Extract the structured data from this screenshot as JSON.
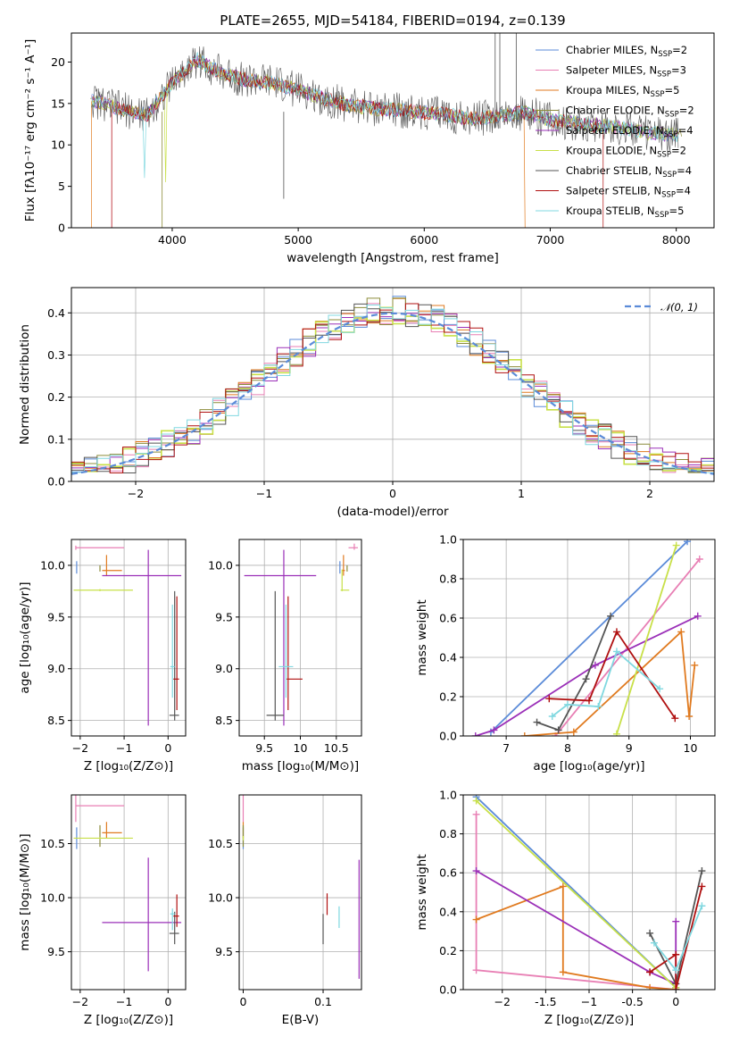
{
  "figure": {
    "title": "PLATE=2655, MJD=54184, FIBERID=0194, z=0.139"
  },
  "series": [
    {
      "name": "Chabrier MILES, N_SSP=2",
      "base": "Chabrier MILES, N",
      "sub": "SSP",
      "suffix": "=2",
      "color": "#5b8bd8"
    },
    {
      "name": "Salpeter MILES, N_SSP=3",
      "base": "Salpeter MILES, N",
      "sub": "SSP",
      "suffix": "=3",
      "color": "#e87fb4"
    },
    {
      "name": "Kroupa MILES, N_SSP=5",
      "base": "Kroupa MILES, N",
      "sub": "SSP",
      "suffix": "=5",
      "color": "#e07a1f"
    },
    {
      "name": "Chabrier ELODIE, N_SSP=2",
      "base": "Chabrier ELODIE, N",
      "sub": "SSP",
      "suffix": "=2",
      "color": "#8c8c3a"
    },
    {
      "name": "Salpeter ELODIE, N_SSP=4",
      "base": "Salpeter ELODIE, N",
      "sub": "SSP",
      "suffix": "=4",
      "color": "#9b30b8"
    },
    {
      "name": "Kroupa ELODIE, N_SSP=2",
      "base": "Kroupa ELODIE, N",
      "sub": "SSP",
      "suffix": "=2",
      "color": "#c8e048"
    },
    {
      "name": "Chabrier STELIB, N_SSP=4",
      "base": "Chabrier STELIB, N",
      "sub": "SSP",
      "suffix": "=4",
      "color": "#555555"
    },
    {
      "name": "Salpeter STELIB, N_SSP=4",
      "base": "Salpeter STELIB, N",
      "sub": "SSP",
      "suffix": "=4",
      "color": "#b01010"
    },
    {
      "name": "Kroupa STELIB, N_SSP=5",
      "base": "Kroupa STELIB, N",
      "sub": "SSP",
      "suffix": "=5",
      "color": "#80d8e0"
    }
  ],
  "chart_data": [
    {
      "id": "spectrum",
      "type": "line",
      "ylabel_text": "Flux [fλ10⁻¹⁷ erg cm⁻² s⁻¹ A⁻¹]",
      "xlabel": "wavelength [Angstrom, rest frame]",
      "xlim": [
        3200,
        8300
      ],
      "ylim": [
        0,
        23.5
      ],
      "xticks": [
        4000,
        5000,
        6000,
        7000,
        8000
      ],
      "yticks": [
        0,
        5,
        10,
        15,
        20
      ],
      "grid": false,
      "legend": "top-right",
      "continuum": {
        "x": [
          3400,
          3600,
          3800,
          4000,
          4200,
          4400,
          4600,
          4800,
          5000,
          5200,
          5400,
          5600,
          5800,
          6000,
          6200,
          6400,
          6600,
          6800,
          7000,
          7200,
          7400,
          7600,
          7800,
          8000,
          8050
        ],
        "y": [
          15.2,
          14.3,
          13.6,
          17.5,
          20.3,
          18.6,
          17.8,
          17.5,
          16.6,
          15.6,
          14.8,
          14.4,
          14.2,
          13.9,
          13.6,
          13.1,
          13.5,
          13.9,
          13.0,
          12.6,
          12.3,
          12.0,
          11.4,
          11.2,
          11.0
        ]
      }
    },
    {
      "id": "residuals",
      "type": "histogram",
      "xlabel": "(data-model)/error",
      "ylabel": "Normed distribution",
      "xlim": [
        -2.5,
        2.5
      ],
      "ylim": [
        0,
        0.46
      ],
      "xticks": [
        -2,
        -1,
        0,
        1,
        2
      ],
      "yticks": [
        0.0,
        0.1,
        0.2,
        0.3,
        0.4
      ],
      "grid": true,
      "legend": "top-right",
      "normal_label": "𝒩(0, 1)",
      "normal_mu": 0,
      "normal_sigma": 1,
      "normal_color": "#5b8bd8",
      "bin_width": 0.1
    },
    {
      "id": "age_vs_Z",
      "type": "errorbar",
      "xlabel_text": "Z [log₁₀(Z/Z⊙)]",
      "ylabel_text": "age  [log₁₀(age/yr)]",
      "xlim": [
        -2.2,
        0.4
      ],
      "ylim": [
        8.35,
        10.25
      ],
      "xticks": [
        -2,
        -1,
        0
      ],
      "yticks": [
        8.5,
        9.0,
        9.5,
        10.0
      ],
      "grid": true,
      "points": [
        {
          "s": 0,
          "x": -2.08,
          "y": 9.98,
          "xe": [
            0,
            0
          ],
          "ye": [
            0.06,
            0.06
          ]
        },
        {
          "s": 1,
          "x": -2.1,
          "y": 10.17,
          "xe": [
            0,
            1.1
          ],
          "ye": [
            0.02,
            0.02
          ]
        },
        {
          "s": 2,
          "x": -1.4,
          "y": 9.95,
          "xe": [
            0.1,
            0.35
          ],
          "ye": [
            0.05,
            0.15
          ]
        },
        {
          "s": 3,
          "x": -1.55,
          "y": 9.97,
          "xe": [
            0,
            0
          ],
          "ye": [
            0.03,
            0.03
          ]
        },
        {
          "s": 4,
          "x": -0.45,
          "y": 9.9,
          "xe": [
            1.05,
            0.75
          ],
          "ye": [
            1.45,
            0.25
          ]
        },
        {
          "s": 5,
          "x": -1.55,
          "y": 9.76,
          "xe": [
            0.6,
            0.75
          ],
          "ye": [
            0.01,
            0.01
          ]
        },
        {
          "s": 6,
          "x": 0.15,
          "y": 8.55,
          "xe": [
            0.12,
            0.1
          ],
          "ye": [
            0.05,
            1.2
          ]
        },
        {
          "s": 7,
          "x": 0.2,
          "y": 8.9,
          "xe": [
            0.08,
            0.05
          ],
          "ye": [
            0.3,
            0.8
          ]
        },
        {
          "s": 8,
          "x": 0.1,
          "y": 9.02,
          "xe": [
            0.05,
            0.05
          ],
          "ye": [
            0.3,
            0.6
          ]
        }
      ]
    },
    {
      "id": "age_vs_mass",
      "type": "errorbar",
      "xlabel_text": "mass [log₁₀(M/M⊙)]",
      "xlim": [
        9.15,
        10.85
      ],
      "ylim": [
        8.35,
        10.25
      ],
      "xticks": [
        9.5,
        10.0,
        10.5
      ],
      "yticks": [
        8.5,
        9.0,
        9.5,
        10.0
      ],
      "grid": true,
      "points": [
        {
          "s": 0,
          "x": 10.55,
          "y": 9.98,
          "xe": [
            0,
            0
          ],
          "ye": [
            0.06,
            0.06
          ]
        },
        {
          "s": 1,
          "x": 10.75,
          "y": 10.17,
          "xe": [
            0.08,
            0.05
          ],
          "ye": [
            0.02,
            0.04
          ]
        },
        {
          "s": 2,
          "x": 10.6,
          "y": 9.95,
          "xe": [
            0.02,
            0.02
          ],
          "ye": [
            0.05,
            0.15
          ]
        },
        {
          "s": 3,
          "x": 10.65,
          "y": 9.97,
          "xe": [
            0,
            0
          ],
          "ye": [
            0.03,
            0.03
          ]
        },
        {
          "s": 4,
          "x": 9.77,
          "y": 9.9,
          "xe": [
            0.55,
            0.45
          ],
          "ye": [
            1.45,
            0.25
          ]
        },
        {
          "s": 5,
          "x": 10.58,
          "y": 9.76,
          "xe": [
            0.02,
            0.1
          ],
          "ye": [
            0.01,
            0.2
          ]
        },
        {
          "s": 6,
          "x": 9.65,
          "y": 8.55,
          "xe": [
            0.12,
            0.12
          ],
          "ye": [
            0.05,
            1.2
          ]
        },
        {
          "s": 7,
          "x": 9.83,
          "y": 8.9,
          "xe": [
            0.02,
            0.2
          ],
          "ye": [
            0.3,
            0.8
          ]
        },
        {
          "s": 8,
          "x": 9.8,
          "y": 9.02,
          "xe": [
            0.1,
            0.1
          ],
          "ye": [
            0.3,
            0.6
          ]
        }
      ]
    },
    {
      "id": "mw_vs_age",
      "type": "line",
      "xlabel_text": "age  [log₁₀(age/yr)]",
      "ylabel": "mass weight",
      "xlim": [
        6.3,
        10.4
      ],
      "ylim": [
        0,
        1.0
      ],
      "xticks": [
        7,
        8,
        9,
        10
      ],
      "yticks": [
        0.0,
        0.2,
        0.4,
        0.6,
        0.8,
        1.0
      ],
      "grid": true,
      "lines": [
        {
          "s": 0,
          "x": [
            6.75,
            9.95
          ],
          "y": [
            0.02,
            0.99
          ]
        },
        {
          "s": 1,
          "x": [
            7.8,
            10.15
          ],
          "y": [
            0.0,
            0.9
          ]
        },
        {
          "s": 2,
          "x": [
            7.3,
            8.1,
            9.85,
            9.98,
            10.07
          ],
          "y": [
            0.0,
            0.02,
            0.53,
            0.1,
            0.36
          ]
        },
        {
          "s": 4,
          "x": [
            6.5,
            6.8,
            8.45,
            10.12
          ],
          "y": [
            0.0,
            0.03,
            0.36,
            0.61
          ]
        },
        {
          "s": 5,
          "x": [
            8.8,
            9.77
          ],
          "y": [
            0.01,
            0.97
          ]
        },
        {
          "s": 6,
          "x": [
            7.5,
            7.85,
            8.3,
            8.7
          ],
          "y": [
            0.07,
            0.03,
            0.29,
            0.61
          ]
        },
        {
          "s": 7,
          "x": [
            7.7,
            8.35,
            8.8,
            9.75
          ],
          "y": [
            0.19,
            0.18,
            0.53,
            0.09
          ]
        },
        {
          "s": 8,
          "x": [
            7.75,
            8.0,
            8.5,
            8.8,
            9.5
          ],
          "y": [
            0.1,
            0.16,
            0.15,
            0.43,
            0.24
          ]
        }
      ]
    },
    {
      "id": "mass_vs_Z",
      "type": "errorbar",
      "xlabel_text": "Z [log₁₀(Z/Z⊙)]",
      "ylabel_text": "mass [log₁₀(M/M⊙)]",
      "xlim": [
        -2.2,
        0.4
      ],
      "ylim": [
        9.15,
        10.95
      ],
      "xticks": [
        -2,
        -1,
        0
      ],
      "yticks": [
        9.5,
        10.0,
        10.5
      ],
      "grid": true,
      "points": [
        {
          "s": 0,
          "x": -2.08,
          "y": 10.55,
          "xe": [
            0,
            0
          ],
          "ye": [
            0.1,
            0.1
          ]
        },
        {
          "s": 1,
          "x": -2.1,
          "y": 10.85,
          "xe": [
            0,
            1.1
          ],
          "ye": [
            0.15,
            0.1
          ]
        },
        {
          "s": 2,
          "x": -1.4,
          "y": 10.6,
          "xe": [
            0.1,
            0.35
          ],
          "ye": [
            0.05,
            0.1
          ]
        },
        {
          "s": 3,
          "x": -1.55,
          "y": 10.57,
          "xe": [
            0,
            0
          ],
          "ye": [
            0.1,
            0.1
          ]
        },
        {
          "s": 4,
          "x": -0.45,
          "y": 9.77,
          "xe": [
            1.05,
            0.75
          ],
          "ye": [
            0.45,
            0.6
          ]
        },
        {
          "s": 5,
          "x": -1.55,
          "y": 10.55,
          "xe": [
            0.6,
            0.75
          ],
          "ye": [
            0.01,
            0.01
          ]
        },
        {
          "s": 6,
          "x": 0.15,
          "y": 9.67,
          "xe": [
            0.12,
            0.1
          ],
          "ye": [
            0.1,
            0.2
          ]
        },
        {
          "s": 7,
          "x": 0.2,
          "y": 9.83,
          "xe": [
            0.08,
            0.05
          ],
          "ye": [
            0.1,
            0.2
          ]
        },
        {
          "s": 8,
          "x": 0.1,
          "y": 9.85,
          "xe": [
            0.05,
            0.05
          ],
          "ye": [
            0.15,
            0.05
          ]
        }
      ]
    },
    {
      "id": "mass_vs_EBV",
      "type": "errorbar",
      "xlabel": "E(B-V)",
      "xlim": [
        -0.005,
        0.148
      ],
      "ylim": [
        9.15,
        10.95
      ],
      "xticks": [
        0.0,
        0.1
      ],
      "yticks": [
        9.5,
        10.0,
        10.5
      ],
      "grid": true,
      "points": [
        {
          "s": 0,
          "x": 0.0,
          "y": 10.55,
          "xe": [
            0,
            0
          ],
          "ye": [
            0.1,
            0.1
          ]
        },
        {
          "s": 1,
          "x": 0.0,
          "y": 10.85,
          "xe": [
            0,
            0
          ],
          "ye": [
            0.15,
            0.1
          ]
        },
        {
          "s": 2,
          "x": 0.0,
          "y": 10.6,
          "xe": [
            0,
            0
          ],
          "ye": [
            0.05,
            0.1
          ]
        },
        {
          "s": 3,
          "x": 0.0,
          "y": 10.57,
          "xe": [
            0,
            0
          ],
          "ye": [
            0.1,
            0.1
          ]
        },
        {
          "s": 4,
          "x": 0.145,
          "y": 9.8,
          "xe": [
            0,
            0
          ],
          "ye": [
            0.55,
            0.55
          ]
        },
        {
          "s": 5,
          "x": 0.0,
          "y": 10.55,
          "xe": [
            0,
            0
          ],
          "ye": [
            0.02,
            0.02
          ]
        },
        {
          "s": 6,
          "x": 0.1,
          "y": 9.72,
          "xe": [
            0,
            0
          ],
          "ye": [
            0.15,
            0.13
          ]
        },
        {
          "s": 7,
          "x": 0.105,
          "y": 9.94,
          "xe": [
            0,
            0
          ],
          "ye": [
            0.1,
            0.1
          ]
        },
        {
          "s": 8,
          "x": 0.12,
          "y": 9.82,
          "xe": [
            0,
            0
          ],
          "ye": [
            0.1,
            0.1
          ]
        }
      ]
    },
    {
      "id": "mw_vs_Z",
      "type": "line",
      "xlabel_text": "Z [log₁₀(Z/Z⊙)]",
      "ylabel": "mass weight",
      "xlim": [
        -2.45,
        0.45
      ],
      "ylim": [
        0,
        1.0
      ],
      "xticks": [
        -2.0,
        -1.5,
        -1.0,
        -0.5,
        0.0
      ],
      "yticks": [
        0.0,
        0.2,
        0.4,
        0.6,
        0.8,
        1.0
      ],
      "grid": true,
      "lines": [
        {
          "s": 0,
          "x": [
            -2.3,
            0.0
          ],
          "y": [
            0.99,
            0.01
          ]
        },
        {
          "s": 1,
          "x": [
            -2.3,
            -2.3,
            0.0
          ],
          "y": [
            0.9,
            0.1,
            0.0
          ]
        },
        {
          "s": 2,
          "x": [
            -2.3,
            -1.3,
            -1.3,
            -0.3,
            0.0
          ],
          "y": [
            0.36,
            0.53,
            0.09,
            0.01,
            0.0
          ]
        },
        {
          "s": 4,
          "x": [
            -2.3,
            -0.3,
            0.0,
            0.0
          ],
          "y": [
            0.61,
            0.09,
            0.03,
            0.35
          ]
        },
        {
          "s": 5,
          "x": [
            -2.3,
            0.0
          ],
          "y": [
            0.97,
            0.01
          ]
        },
        {
          "s": 6,
          "x": [
            -0.3,
            0.0,
            0.3
          ],
          "y": [
            0.29,
            0.03,
            0.61
          ]
        },
        {
          "s": 7,
          "x": [
            -0.3,
            0.0,
            0.0,
            0.3
          ],
          "y": [
            0.09,
            0.18,
            0.0,
            0.53
          ]
        },
        {
          "s": 8,
          "x": [
            -0.25,
            0.0,
            0.3
          ],
          "y": [
            0.24,
            0.1,
            0.43
          ]
        }
      ]
    }
  ]
}
